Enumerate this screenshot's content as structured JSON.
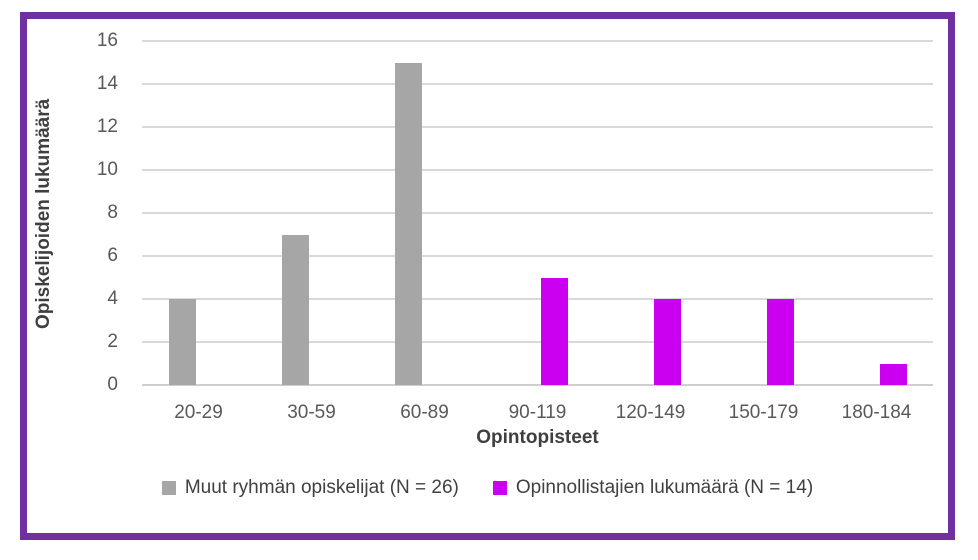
{
  "frame": {
    "border_color": "#7030A0",
    "background": "#FFFFFF"
  },
  "chart_data": {
    "type": "bar",
    "title": "",
    "categories": [
      "20-29",
      "30-59",
      "60-89",
      "90-119",
      "120-149",
      "150-179",
      "180-184"
    ],
    "series": [
      {
        "name": "Muut ryhmän opiskelijat (N = 26)",
        "color": "#A6A6A6",
        "values": [
          4,
          7,
          15,
          null,
          null,
          null,
          null
        ]
      },
      {
        "name": "Opinnollistajien lukumäärä (N = 14)",
        "color": "#CC00F0",
        "values": [
          null,
          null,
          null,
          5,
          4,
          4,
          1
        ]
      }
    ],
    "xlabel": "Opintopisteet",
    "ylabel": "Opiskelijoiden lukumäärä",
    "ylim": [
      0,
      16
    ],
    "ytick_step": 2,
    "ytick_labels": [
      "0",
      "2",
      "4",
      "6",
      "8",
      "10",
      "12",
      "14",
      "16"
    ],
    "grid": "horizontal",
    "gridline_color": "#D9D9D9",
    "tick_label_color": "#595959",
    "axis_title_color": "#3F3F3F",
    "legend_position": "bottom"
  }
}
